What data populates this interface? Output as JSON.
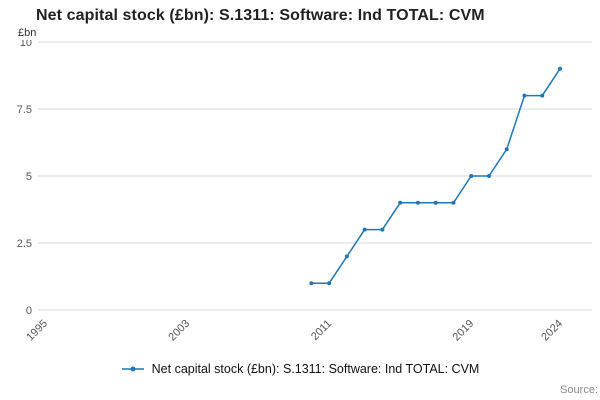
{
  "header": {
    "title": "Net capital stock (£bn): S.1311: Software: Ind TOTAL: CVM",
    "y_unit": "£bn"
  },
  "chart_data": {
    "type": "line",
    "title": "Net capital stock (£bn): S.1311: Software: Ind TOTAL: CVM",
    "xlabel": "",
    "ylabel": "£bn",
    "xlim": [
      1995,
      2024
    ],
    "ylim": [
      0,
      10
    ],
    "x_ticks": [
      1995,
      2003,
      2011,
      2019,
      2024
    ],
    "y_ticks": [
      0,
      2.5,
      5,
      7.5,
      10
    ],
    "grid": "horizontal",
    "legend_position": "bottom",
    "series": [
      {
        "name": "Net capital stock (£bn): S.1311: Software: Ind TOTAL: CVM",
        "color": "#1f77b4",
        "x": [
          2010,
          2011,
          2012,
          2013,
          2014,
          2015,
          2016,
          2017,
          2018,
          2019,
          2020,
          2021,
          2022,
          2023,
          2024
        ],
        "values": [
          1,
          1,
          2,
          3,
          3,
          4,
          4,
          4,
          4,
          5,
          5,
          6,
          8,
          8,
          9
        ]
      }
    ]
  },
  "legend": {
    "label": "Net capital stock (£bn): S.1311: Software: Ind TOTAL: CVM"
  },
  "footer": {
    "source": "Source:"
  }
}
